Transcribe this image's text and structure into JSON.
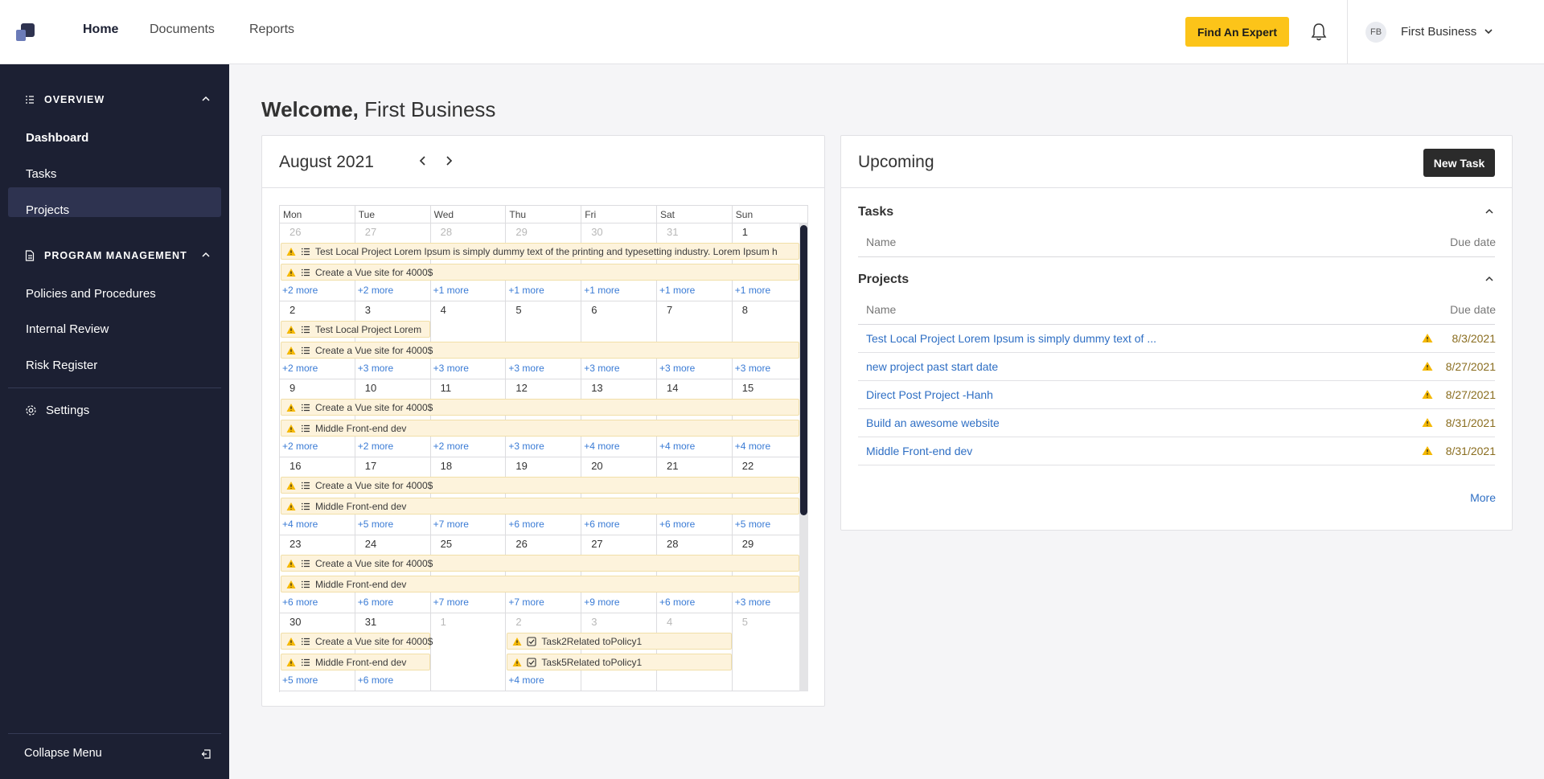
{
  "header": {
    "nav": [
      "Home",
      "Documents",
      "Reports"
    ],
    "button": "Find An Expert",
    "avatar": "FB",
    "user": "First Business"
  },
  "sidebar": {
    "sections": [
      {
        "title": "OVERVIEW",
        "items": [
          "Dashboard",
          "Tasks",
          "Projects"
        ]
      },
      {
        "title": "PROGRAM MANAGEMENT",
        "items": [
          "Policies and Procedures",
          "Internal Review",
          "Risk Register"
        ]
      }
    ],
    "settings": "Settings",
    "collapse": "Collapse Menu"
  },
  "welcome": {
    "greeting": "Welcome,",
    "name": "First Business"
  },
  "calendar": {
    "title": "August 2021",
    "weekdays": [
      "Mon",
      "Tue",
      "Wed",
      "Thu",
      "Fri",
      "Sat",
      "Sun"
    ],
    "weeks": [
      {
        "days": [
          26,
          27,
          28,
          29,
          30,
          31,
          1
        ],
        "events": [
          {
            "text": "Test Local Project Lorem Ipsum is simply dummy text of the printing and typesetting industry. Lorem Ipsum h",
            "icon": "list",
            "days": [
              26,
              1
            ]
          },
          {
            "text": "Create a Vue site for 4000$",
            "icon": "list",
            "days": [
              26,
              1
            ]
          }
        ],
        "more": [
          "+2 more",
          "+2 more",
          "+1 more",
          "+1 more",
          "+1 more",
          "+1 more",
          "+1 more"
        ]
      },
      {
        "days": [
          2,
          3,
          4,
          5,
          6,
          7,
          8
        ],
        "events": [
          {
            "text": "Test Local Project Lorem",
            "icon": "list",
            "days": [
              2,
              3
            ]
          },
          {
            "text": "Create a Vue site for 4000$",
            "icon": "list",
            "days": [
              2,
              8
            ]
          }
        ],
        "more": [
          "+2 more",
          "+3 more",
          "+3 more",
          "+3 more",
          "+3 more",
          "+3 more",
          "+3 more"
        ]
      },
      {
        "days": [
          9,
          10,
          11,
          12,
          13,
          14,
          15
        ],
        "events": [
          {
            "text": "Create a Vue site for 4000$",
            "icon": "list",
            "days": [
              9,
              15
            ]
          },
          {
            "text": "Middle Front-end dev",
            "icon": "list",
            "days": [
              9,
              15
            ]
          }
        ],
        "more": [
          "+2 more",
          "+2 more",
          "+2 more",
          "+3 more",
          "+4 more",
          "+4 more",
          "+4 more"
        ]
      },
      {
        "days": [
          16,
          17,
          18,
          19,
          20,
          21,
          22
        ],
        "events": [
          {
            "text": "Create a Vue site for 4000$",
            "icon": "list",
            "days": [
              16,
              22
            ]
          },
          {
            "text": "Middle Front-end dev",
            "icon": "list",
            "days": [
              16,
              22
            ]
          }
        ],
        "more": [
          "+4 more",
          "+5 more",
          "+7 more",
          "+6 more",
          "+6 more",
          "+6 more",
          "+5 more"
        ]
      },
      {
        "days": [
          23,
          24,
          25,
          26,
          27,
          28,
          29
        ],
        "events": [
          {
            "text": "Create a Vue site for 4000$",
            "icon": "list",
            "days": [
              23,
              29
            ]
          },
          {
            "text": "Middle Front-end dev",
            "icon": "list",
            "days": [
              23,
              29
            ]
          }
        ],
        "more": [
          "+6 more",
          "+6 more",
          "+7 more",
          "+7 more",
          "+9 more",
          "+6 more",
          "+3 more"
        ]
      },
      {
        "days": [
          30,
          31,
          1,
          2,
          3,
          4,
          5
        ],
        "events": [
          {
            "text": "Create a Vue site for 4000$",
            "icon": "list",
            "days": [
              30,
              31
            ]
          },
          {
            "text": "Middle Front-end dev",
            "icon": "list",
            "days": [
              30,
              31
            ]
          },
          {
            "text": "Task2Related toPolicy1",
            "icon": "check",
            "days": [
              2,
              4
            ]
          },
          {
            "text": "Task5Related toPolicy1",
            "icon": "check",
            "days": [
              2,
              4
            ]
          }
        ],
        "more": [
          "+5 more",
          "+6 more",
          null,
          "+4 more",
          null,
          null,
          null
        ]
      }
    ]
  },
  "upcoming": {
    "title": "Upcoming",
    "button": "New Task",
    "sections": [
      {
        "title": "Tasks",
        "columns": [
          "Name",
          "Due date"
        ],
        "rows": []
      },
      {
        "title": "Projects",
        "columns": [
          "Name",
          "Due date"
        ],
        "rows": [
          [
            "Test Local Project Lorem Ipsum is simply dummy text of ...",
            "8/3/2021"
          ],
          [
            "new project past start date",
            "8/27/2021"
          ],
          [
            "Direct Post Project -Hanh",
            "8/27/2021"
          ],
          [
            "Build an awesome website",
            "8/31/2021"
          ],
          [
            "Middle Front-end dev",
            "8/31/2021"
          ]
        ]
      }
    ],
    "more": "More"
  }
}
